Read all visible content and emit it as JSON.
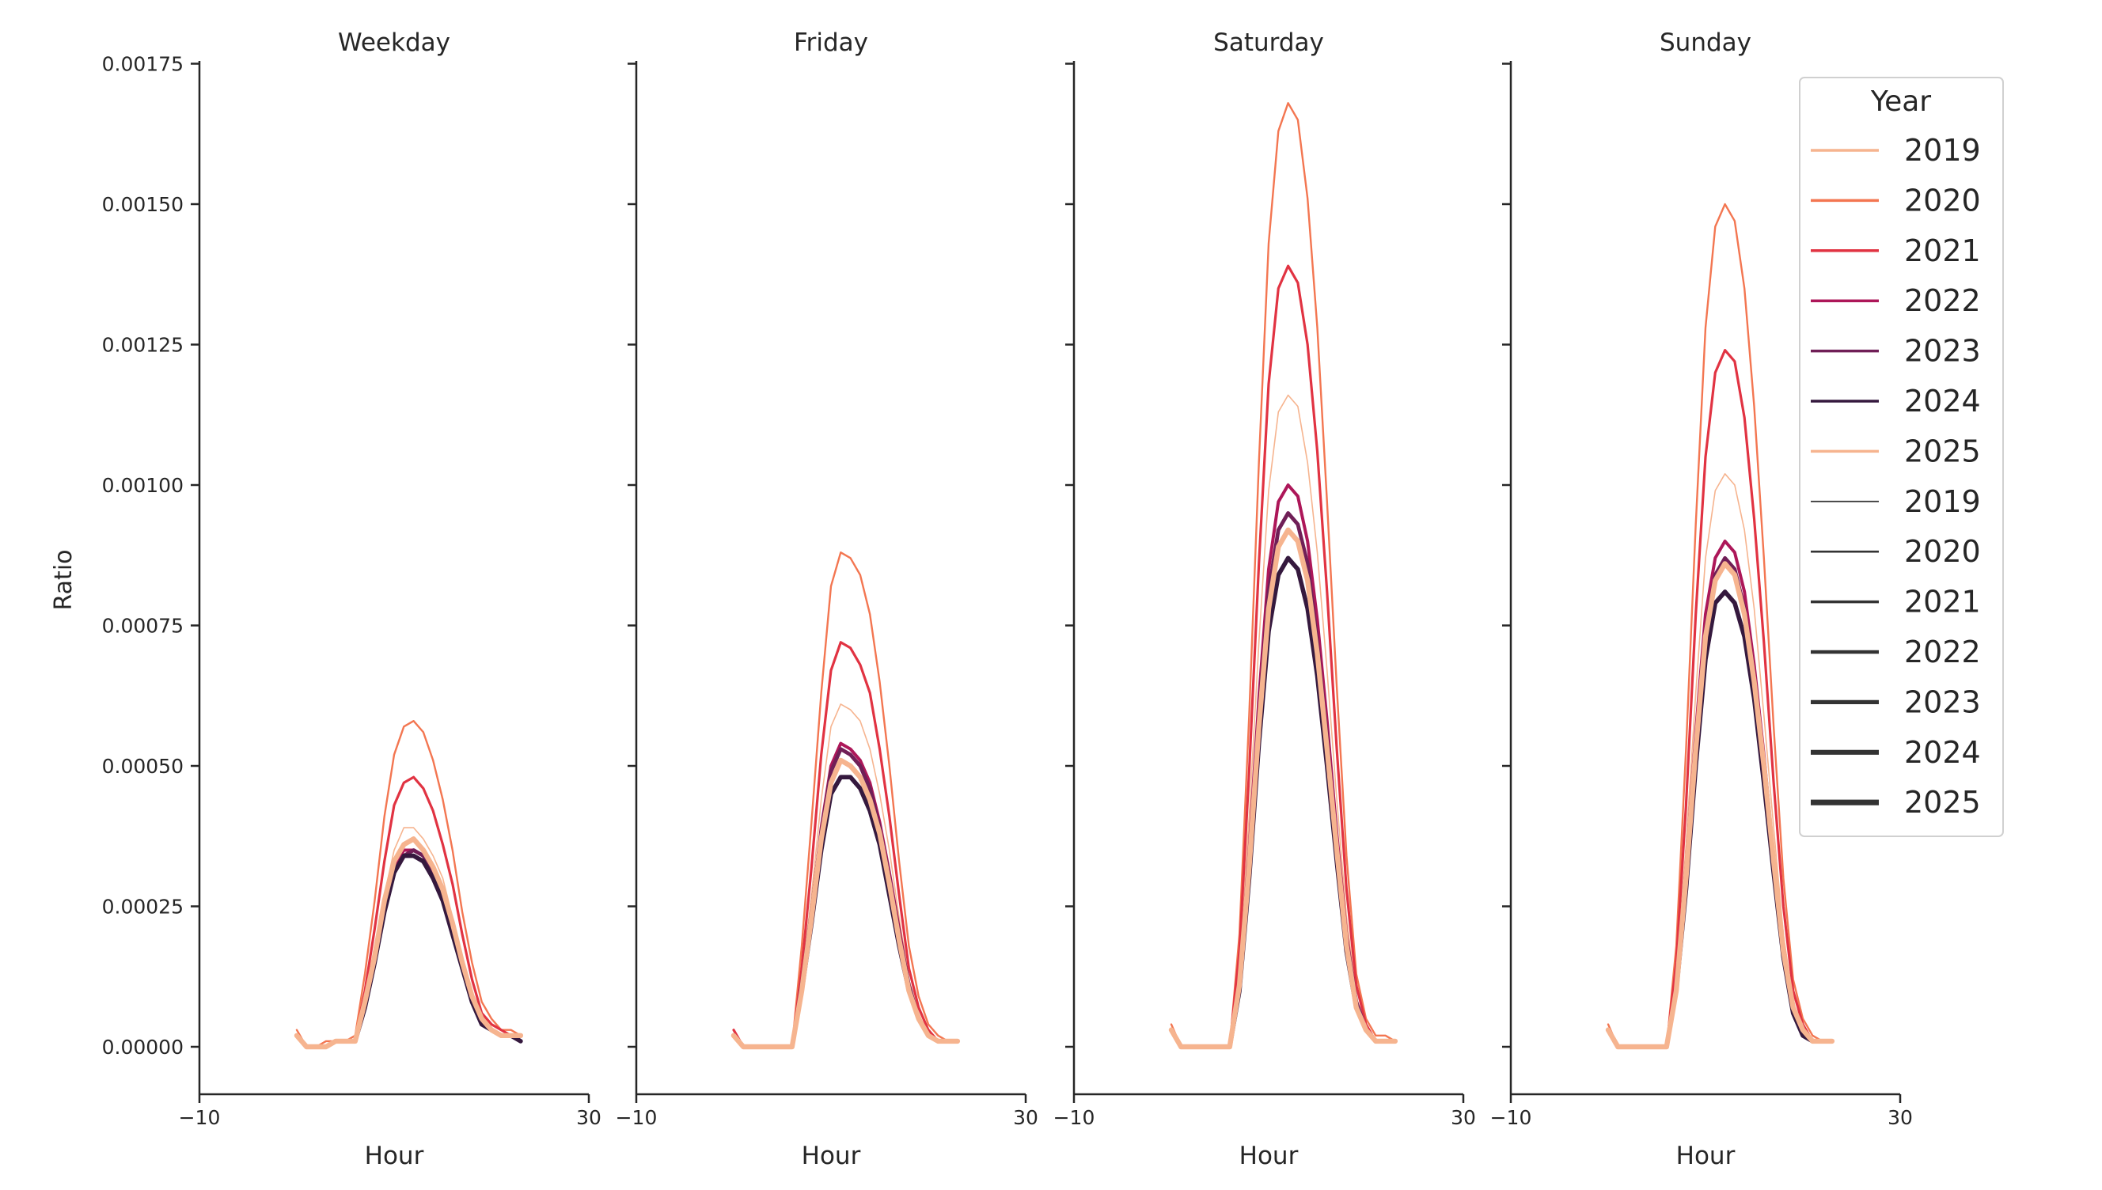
{
  "chart_data": {
    "type": "line",
    "ylabel": "Ratio",
    "ylim": [
      0,
      0.00175
    ],
    "yticks": [
      "0.00000",
      "0.00025",
      "0.00050",
      "0.00075",
      "0.00100",
      "0.00125",
      "0.00150",
      "0.00175"
    ],
    "ytick_values": [
      0,
      0.00025,
      0.0005,
      0.00075,
      0.001,
      0.00125,
      0.0015,
      0.00175
    ],
    "xlim": [
      -10,
      30
    ],
    "xticks": [
      "−10",
      "30"
    ],
    "xtick_values": [
      -10,
      30
    ],
    "grid": false,
    "legend": {
      "title": "Year",
      "placement": "top-right",
      "hue_entries": [
        "2019",
        "2020",
        "2021",
        "2022",
        "2023",
        "2024",
        "2025"
      ],
      "size_entries": [
        "2019",
        "2020",
        "2021",
        "2022",
        "2023",
        "2024",
        "2025"
      ]
    },
    "colors": {
      "2019": "#f6b48f",
      "2020": "#f37651",
      "2021": "#e13342",
      "2022": "#ad1759",
      "2023": "#701f57",
      "2024": "#35193e",
      "2025": "#f6b48f"
    },
    "x": [
      0,
      1,
      2,
      3,
      4,
      5,
      6,
      7,
      8,
      9,
      10,
      11,
      12,
      13,
      14,
      15,
      16,
      17,
      18,
      19,
      20,
      21,
      22,
      23
    ],
    "panels": [
      {
        "title": "Weekday",
        "xlabel": "Hour",
        "series": [
          {
            "name": "2019",
            "values": [
              2e-05,
              0,
              0,
              0,
              1e-05,
              1e-05,
              1e-05,
              9e-05,
              0.00018,
              0.00027,
              0.00035,
              0.00039,
              0.00039,
              0.00037,
              0.00034,
              0.0003,
              0.00023,
              0.00016,
              0.0001,
              5e-05,
              3e-05,
              2e-05,
              2e-05,
              2e-05
            ]
          },
          {
            "name": "2020",
            "values": [
              3e-05,
              0,
              0,
              1e-05,
              1e-05,
              1e-05,
              2e-05,
              0.00013,
              0.00026,
              0.00041,
              0.00052,
              0.00057,
              0.00058,
              0.00056,
              0.00051,
              0.00044,
              0.00035,
              0.00024,
              0.00015,
              8e-05,
              5e-05,
              3e-05,
              3e-05,
              2e-05
            ]
          },
          {
            "name": "2021",
            "values": [
              2e-05,
              0,
              0,
              0,
              1e-05,
              1e-05,
              1e-05,
              0.0001,
              0.00021,
              0.00033,
              0.00043,
              0.00047,
              0.00048,
              0.00046,
              0.00042,
              0.00036,
              0.00029,
              0.0002,
              0.00012,
              6e-05,
              4e-05,
              3e-05,
              2e-05,
              2e-05
            ]
          },
          {
            "name": "2022",
            "values": [
              2e-05,
              0,
              0,
              0,
              1e-05,
              1e-05,
              1e-05,
              8e-05,
              0.00016,
              0.00025,
              0.00032,
              0.00035,
              0.00035,
              0.00034,
              0.00031,
              0.00027,
              0.00021,
              0.00015,
              9e-05,
              5e-05,
              3e-05,
              2e-05,
              2e-05,
              1e-05
            ]
          },
          {
            "name": "2023",
            "values": [
              2e-05,
              0,
              0,
              0,
              1e-05,
              1e-05,
              1e-05,
              8e-05,
              0.00016,
              0.00024,
              0.00031,
              0.00034,
              0.00035,
              0.00034,
              0.00031,
              0.00026,
              0.00021,
              0.00015,
              9e-05,
              5e-05,
              3e-05,
              2e-05,
              2e-05,
              1e-05
            ]
          },
          {
            "name": "2024",
            "values": [
              2e-05,
              0,
              0,
              0,
              1e-05,
              1e-05,
              1e-05,
              7e-05,
              0.00015,
              0.00024,
              0.00031,
              0.00034,
              0.00034,
              0.00033,
              0.0003,
              0.00026,
              0.0002,
              0.00014,
              8e-05,
              4e-05,
              3e-05,
              2e-05,
              2e-05,
              1e-05
            ]
          },
          {
            "name": "2025",
            "values": [
              2e-05,
              0,
              0,
              0,
              1e-05,
              1e-05,
              1e-05,
              8e-05,
              0.00016,
              0.00026,
              0.00033,
              0.00036,
              0.00037,
              0.00035,
              0.00032,
              0.00028,
              0.00022,
              0.00015,
              9e-05,
              5e-05,
              3e-05,
              2e-05,
              2e-05,
              2e-05
            ]
          }
        ]
      },
      {
        "title": "Friday",
        "xlabel": "Hour",
        "series": [
          {
            "name": "2019",
            "values": [
              2e-05,
              0,
              0,
              0,
              0,
              0,
              0,
              0.00012,
              0.00027,
              0.00044,
              0.00057,
              0.00061,
              0.0006,
              0.00058,
              0.00053,
              0.00045,
              0.00035,
              0.00023,
              0.00012,
              6e-05,
              2e-05,
              1e-05,
              1e-05,
              1e-05
            ]
          },
          {
            "name": "2020",
            "values": [
              3e-05,
              0,
              0,
              0,
              0,
              0,
              0,
              0.00018,
              0.0004,
              0.00063,
              0.00082,
              0.00088,
              0.00087,
              0.00084,
              0.00077,
              0.00065,
              0.0005,
              0.00033,
              0.00018,
              9e-05,
              4e-05,
              2e-05,
              1e-05,
              1e-05
            ]
          },
          {
            "name": "2021",
            "values": [
              3e-05,
              0,
              0,
              0,
              0,
              0,
              0,
              0.00014,
              0.00032,
              0.00052,
              0.00067,
              0.00072,
              0.00071,
              0.00068,
              0.00063,
              0.00053,
              0.00041,
              0.00027,
              0.00014,
              7e-05,
              3e-05,
              1e-05,
              1e-05,
              1e-05
            ]
          },
          {
            "name": "2022",
            "values": [
              2e-05,
              0,
              0,
              0,
              0,
              0,
              0,
              0.00011,
              0.00024,
              0.00039,
              0.0005,
              0.00054,
              0.00053,
              0.00051,
              0.00047,
              0.0004,
              0.00031,
              0.00021,
              0.00011,
              5e-05,
              2e-05,
              1e-05,
              1e-05,
              1e-05
            ]
          },
          {
            "name": "2023",
            "values": [
              2e-05,
              0,
              0,
              0,
              0,
              0,
              0,
              0.00011,
              0.00024,
              0.00038,
              0.00049,
              0.00053,
              0.00052,
              0.0005,
              0.00046,
              0.00039,
              0.0003,
              0.0002,
              0.00011,
              5e-05,
              2e-05,
              1e-05,
              1e-05,
              1e-05
            ]
          },
          {
            "name": "2024",
            "values": [
              2e-05,
              0,
              0,
              0,
              0,
              0,
              0,
              0.0001,
              0.00022,
              0.00035,
              0.00045,
              0.00048,
              0.00048,
              0.00046,
              0.00042,
              0.00036,
              0.00027,
              0.00018,
              0.0001,
              5e-05,
              2e-05,
              1e-05,
              1e-05,
              1e-05
            ]
          },
          {
            "name": "2025",
            "values": [
              2e-05,
              0,
              0,
              0,
              0,
              0,
              0,
              0.0001,
              0.00023,
              0.00037,
              0.00047,
              0.00051,
              0.0005,
              0.00048,
              0.00044,
              0.00038,
              0.00029,
              0.00019,
              0.0001,
              5e-05,
              2e-05,
              1e-05,
              1e-05,
              1e-05
            ]
          }
        ]
      },
      {
        "title": "Saturday",
        "xlabel": "Hour",
        "series": [
          {
            "name": "2019",
            "values": [
              3e-05,
              0,
              0,
              0,
              0,
              0,
              0,
              0.00014,
              0.00041,
              0.00072,
              0.00099,
              0.00113,
              0.00116,
              0.00114,
              0.00104,
              0.00088,
              0.00067,
              0.00044,
              0.00023,
              9e-05,
              3e-05,
              1e-05,
              1e-05,
              1e-05
            ]
          },
          {
            "name": "2020",
            "values": [
              4e-05,
              0,
              0,
              0,
              0,
              0,
              0,
              0.0002,
              0.00059,
              0.00104,
              0.00143,
              0.00163,
              0.00168,
              0.00165,
              0.00151,
              0.00128,
              0.00097,
              0.00064,
              0.00034,
              0.00013,
              5e-05,
              2e-05,
              2e-05,
              1e-05
            ]
          },
          {
            "name": "2021",
            "values": [
              3e-05,
              0,
              0,
              0,
              0,
              0,
              0,
              0.00017,
              0.00049,
              0.00086,
              0.00118,
              0.00135,
              0.00139,
              0.00136,
              0.00125,
              0.00106,
              0.00081,
              0.00053,
              0.00028,
              0.00011,
              4e-05,
              1e-05,
              1e-05,
              1e-05
            ]
          },
          {
            "name": "2022",
            "values": [
              3e-05,
              0,
              0,
              0,
              0,
              0,
              0,
              0.00012,
              0.00035,
              0.00062,
              0.00085,
              0.00097,
              0.001,
              0.00098,
              0.0009,
              0.00076,
              0.00058,
              0.00038,
              0.0002,
              8e-05,
              3e-05,
              1e-05,
              1e-05,
              1e-05
            ]
          },
          {
            "name": "2023",
            "values": [
              3e-05,
              0,
              0,
              0,
              0,
              0,
              0,
              0.00011,
              0.00033,
              0.00059,
              0.00081,
              0.00092,
              0.00095,
              0.00093,
              0.00086,
              0.00072,
              0.00055,
              0.00036,
              0.00019,
              8e-05,
              3e-05,
              1e-05,
              1e-05,
              1e-05
            ]
          },
          {
            "name": "2024",
            "values": [
              3e-05,
              0,
              0,
              0,
              0,
              0,
              0,
              0.0001,
              0.0003,
              0.00054,
              0.00074,
              0.00084,
              0.00087,
              0.00085,
              0.00078,
              0.00066,
              0.0005,
              0.00033,
              0.00017,
              7e-05,
              3e-05,
              1e-05,
              1e-05,
              1e-05
            ]
          },
          {
            "name": "2025",
            "values": [
              3e-05,
              0,
              0,
              0,
              0,
              0,
              0,
              0.00011,
              0.00032,
              0.00057,
              0.00078,
              0.00089,
              0.00092,
              0.0009,
              0.00083,
              0.0007,
              0.00053,
              0.00035,
              0.00018,
              7e-05,
              3e-05,
              1e-05,
              1e-05,
              1e-05
            ]
          }
        ]
      },
      {
        "title": "Sunday",
        "xlabel": "Hour",
        "series": [
          {
            "name": "2019",
            "values": [
              3e-05,
              0,
              0,
              0,
              0,
              0,
              0,
              0.00012,
              0.00036,
              0.00063,
              0.00087,
              0.00099,
              0.00102,
              0.001,
              0.00092,
              0.00078,
              0.00059,
              0.00039,
              0.0002,
              8e-05,
              3e-05,
              1e-05,
              1e-05,
              1e-05
            ]
          },
          {
            "name": "2020",
            "values": [
              4e-05,
              0,
              0,
              0,
              0,
              0,
              0,
              0.00018,
              0.00053,
              0.00093,
              0.00128,
              0.00146,
              0.0015,
              0.00147,
              0.00135,
              0.00114,
              0.00087,
              0.00057,
              0.0003,
              0.00012,
              5e-05,
              2e-05,
              1e-05,
              1e-05
            ]
          },
          {
            "name": "2021",
            "values": [
              3e-05,
              0,
              0,
              0,
              0,
              0,
              0,
              0.00015,
              0.00043,
              0.00077,
              0.00105,
              0.0012,
              0.00124,
              0.00122,
              0.00112,
              0.00094,
              0.00072,
              0.00047,
              0.00025,
              0.0001,
              4e-05,
              1e-05,
              1e-05,
              1e-05
            ]
          },
          {
            "name": "2022",
            "values": [
              3e-05,
              0,
              0,
              0,
              0,
              0,
              0,
              0.00011,
              0.00032,
              0.00056,
              0.00077,
              0.00087,
              0.0009,
              0.00088,
              0.00081,
              0.00068,
              0.00052,
              0.00034,
              0.00018,
              7e-05,
              3e-05,
              1e-05,
              1e-05,
              1e-05
            ]
          },
          {
            "name": "2023",
            "values": [
              3e-05,
              0,
              0,
              0,
              0,
              0,
              0,
              0.0001,
              0.0003,
              0.00054,
              0.00074,
              0.00084,
              0.00087,
              0.00085,
              0.00078,
              0.00066,
              0.0005,
              0.00033,
              0.00017,
              7e-05,
              3e-05,
              1e-05,
              1e-05,
              1e-05
            ]
          },
          {
            "name": "2024",
            "values": [
              3e-05,
              0,
              0,
              0,
              0,
              0,
              0,
              0.0001,
              0.00028,
              0.0005,
              0.00069,
              0.00079,
              0.00081,
              0.00079,
              0.00073,
              0.00062,
              0.00047,
              0.00031,
              0.00016,
              6e-05,
              2e-05,
              1e-05,
              1e-05,
              1e-05
            ]
          },
          {
            "name": "2025",
            "values": [
              3e-05,
              0,
              0,
              0,
              0,
              0,
              0,
              0.0001,
              0.0003,
              0.00053,
              0.00073,
              0.00083,
              0.00086,
              0.00084,
              0.00077,
              0.00065,
              0.0005,
              0.00033,
              0.00017,
              7e-05,
              3e-05,
              1e-05,
              1e-05,
              1e-05
            ]
          }
        ]
      }
    ]
  }
}
